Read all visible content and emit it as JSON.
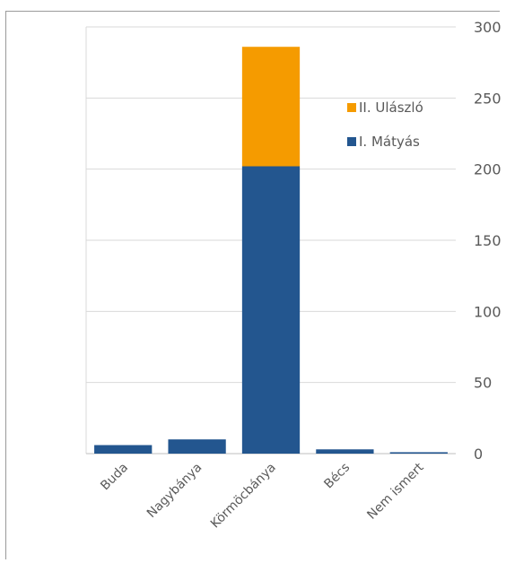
{
  "chart_data": {
    "type": "bar",
    "stacked": true,
    "categories": [
      "Buda",
      "Nagybánya",
      "Körmöcbánya",
      "Bécs",
      "Nem ismert"
    ],
    "series": [
      {
        "name": "I. Mátyás",
        "values": [
          6,
          10,
          202,
          3,
          1
        ],
        "color": "#23568f"
      },
      {
        "name": "II. Ulászló",
        "values": [
          0,
          0,
          84,
          0,
          0
        ],
        "color": "#f59b00"
      }
    ],
    "ylim": [
      0,
      300
    ],
    "yticks": [
      0,
      50,
      100,
      150,
      200,
      250,
      300
    ],
    "y_axis_side": "right",
    "grid": true,
    "legend_position": "right, inside plot"
  }
}
